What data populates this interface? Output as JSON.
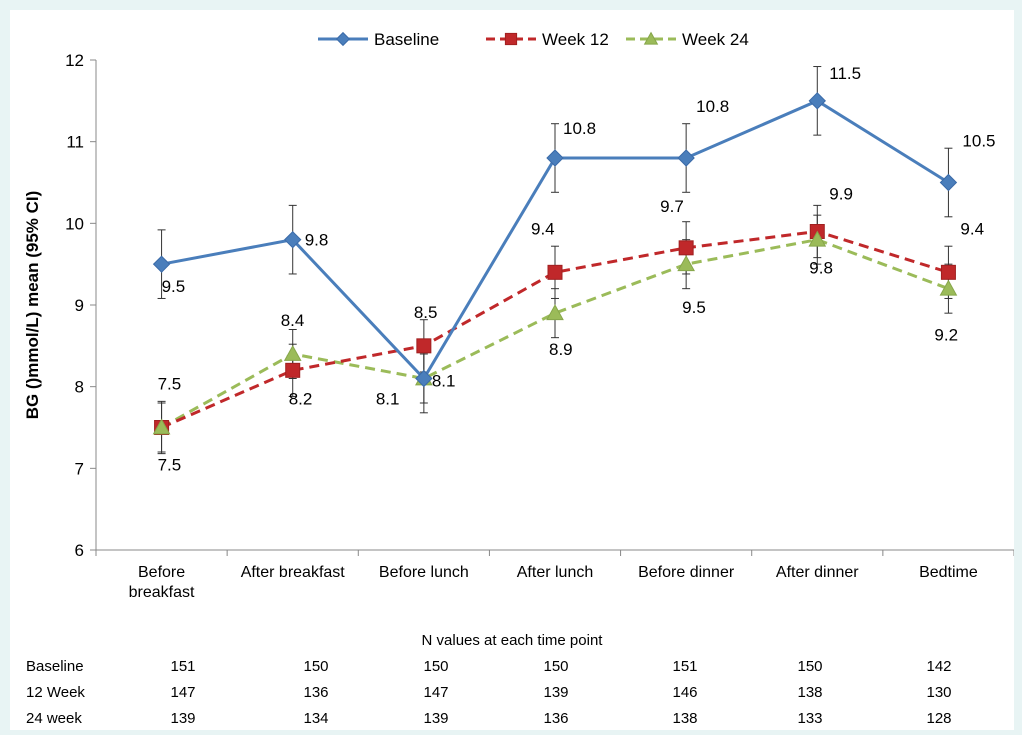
{
  "chart_data": {
    "type": "line",
    "ylabel": "BG ()mmol/L) mean (95% CI)",
    "ylim": [
      6,
      12
    ],
    "yticks": [
      "6",
      "7",
      "8",
      "9",
      "10",
      "11",
      "12"
    ],
    "categories": [
      "Before breakfast",
      "After breakfast",
      "Before lunch",
      "After lunch",
      "Before dinner",
      "After dinner",
      "Bedtime"
    ],
    "series": [
      {
        "name": "Baseline",
        "color": "#4a7ebb",
        "marker": "diamond",
        "dash": "solid",
        "values": [
          9.5,
          9.8,
          8.1,
          10.8,
          10.8,
          11.5,
          10.5
        ],
        "labels": [
          "9.5",
          "9.8",
          "8.1",
          "10.8",
          "10.8",
          "11.5",
          "10.5"
        ],
        "ci_low": [
          9.08,
          9.38,
          7.68,
          10.38,
          10.38,
          11.08,
          10.08
        ],
        "ci_high": [
          9.92,
          10.22,
          8.52,
          11.22,
          11.22,
          11.92,
          10.92
        ]
      },
      {
        "name": "Week 12",
        "color": "#c0282a",
        "marker": "square",
        "dash": "dashed",
        "values": [
          7.5,
          8.2,
          8.5,
          9.4,
          9.7,
          9.9,
          9.4
        ],
        "labels": [
          "7.5",
          "8.2",
          "8.5",
          "9.4",
          "9.7",
          "9.9",
          "9.4"
        ],
        "ci_low": [
          7.18,
          7.88,
          8.18,
          9.08,
          9.38,
          9.58,
          9.08
        ],
        "ci_high": [
          7.82,
          8.52,
          8.82,
          9.72,
          10.02,
          10.22,
          9.72
        ]
      },
      {
        "name": "Week 24",
        "color": "#9bbb59",
        "marker": "triangle",
        "dash": "dashed",
        "values": [
          7.5,
          8.4,
          8.1,
          8.9,
          9.5,
          9.8,
          9.2
        ],
        "labels": [
          "7.5",
          "8.4",
          "8.1",
          "8.9",
          "9.5",
          "9.8",
          "9.2"
        ],
        "ci_low": [
          7.2,
          8.1,
          7.8,
          8.6,
          9.2,
          9.5,
          8.9
        ],
        "ci_high": [
          7.8,
          8.7,
          8.4,
          9.2,
          9.8,
          10.1,
          9.5
        ]
      }
    ],
    "grid": false,
    "legend": "top"
  },
  "n_table": {
    "caption": "N values at each time point",
    "rows": [
      {
        "label": "Baseline",
        "values": [
          "151",
          "150",
          "150",
          "150",
          "151",
          "150",
          "142"
        ]
      },
      {
        "label": "12 Week",
        "values": [
          "147",
          "136",
          "147",
          "139",
          "146",
          "138",
          "130"
        ]
      },
      {
        "label": "24 week",
        "values": [
          "139",
          "134",
          "139",
          "136",
          "138",
          "133",
          "128"
        ]
      }
    ]
  }
}
